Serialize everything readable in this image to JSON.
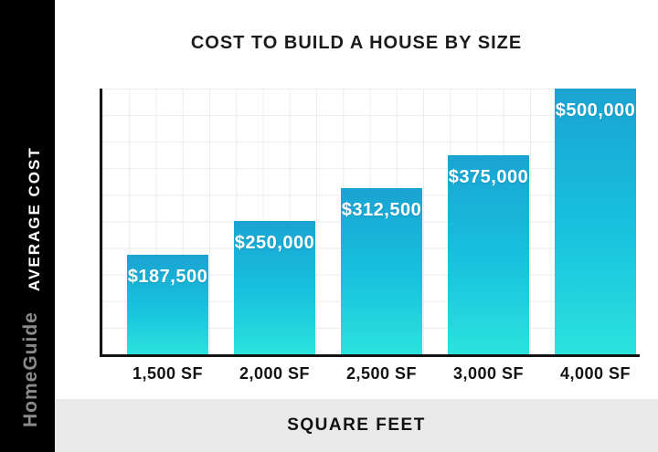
{
  "branding": {
    "name": "HomeGuide"
  },
  "chart_data": {
    "type": "bar",
    "title": "COST TO BUILD A HOUSE BY SIZE",
    "categories": [
      "1,500 SF",
      "2,000 SF",
      "2,500 SF",
      "3,000 SF",
      "4,000 SF"
    ],
    "values": [
      187500,
      250000,
      312500,
      375000,
      500000
    ],
    "value_labels": [
      "$187,500",
      "$250,000",
      "$312,500",
      "$375,000",
      "$500,000"
    ],
    "xlabel": "SQUARE FEET",
    "ylabel": "AVERAGE COST",
    "ylim": [
      0,
      500000
    ],
    "grid": true,
    "legend": "none",
    "colors": {
      "bar_gradient_top": "#1aa3d2",
      "bar_gradient_mid": "#18c3de",
      "bar_gradient_bottom": "#2ce2dd",
      "sidebar_bg": "#000000",
      "footer_bg": "#e9e9e9",
      "grid_line": "#ececec",
      "axis_line": "#141414",
      "bar_label_text": "#ffffff",
      "brand_text": "#8a8a8a",
      "title_text": "#1b1b1b"
    }
  }
}
